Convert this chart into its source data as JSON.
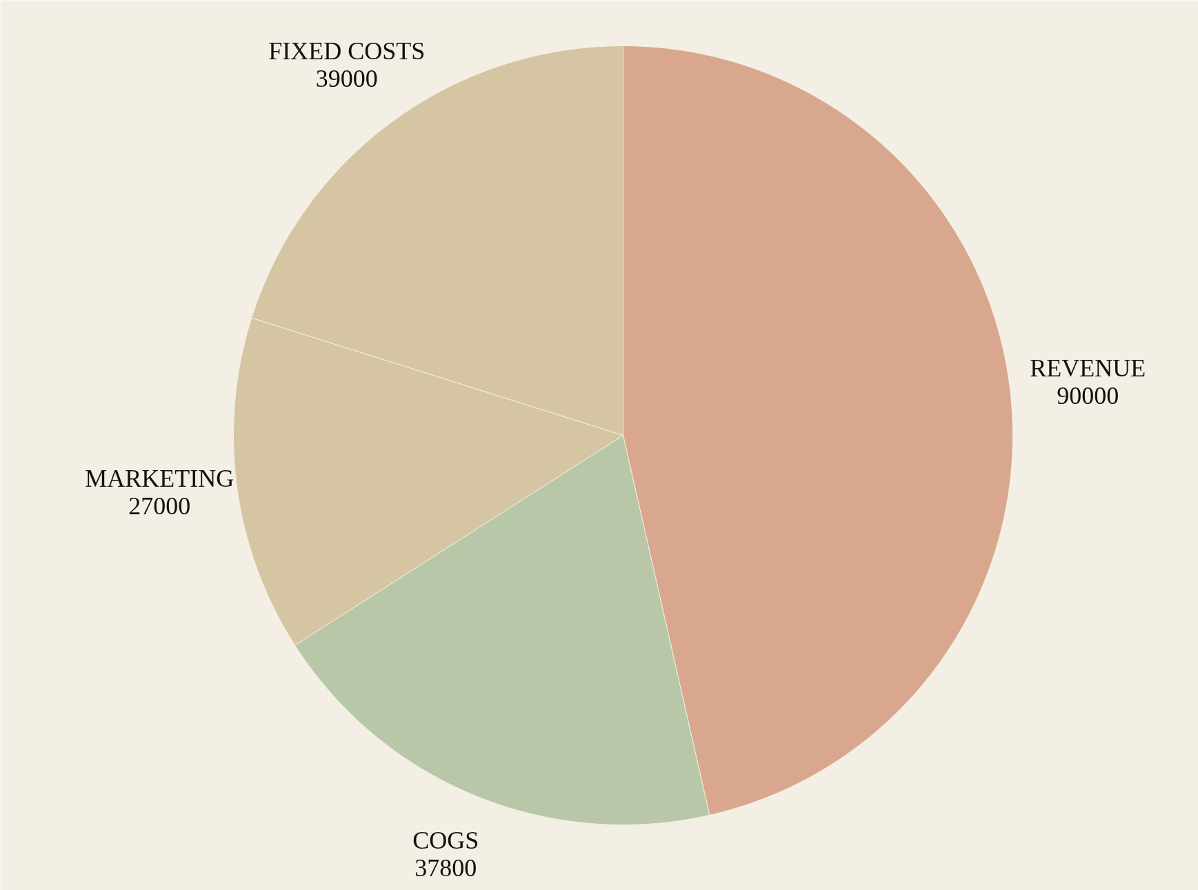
{
  "chart_data": {
    "type": "pie",
    "categories": [
      "REVENUE",
      "COGS",
      "MARKETING",
      "FIXED COSTS"
    ],
    "values": [
      90000,
      37800,
      27000,
      39000
    ],
    "colors": [
      "#d8a78e",
      "#b7c7a8",
      "#d6c5a3",
      "#d6c5a3"
    ],
    "data_labels": true
  }
}
